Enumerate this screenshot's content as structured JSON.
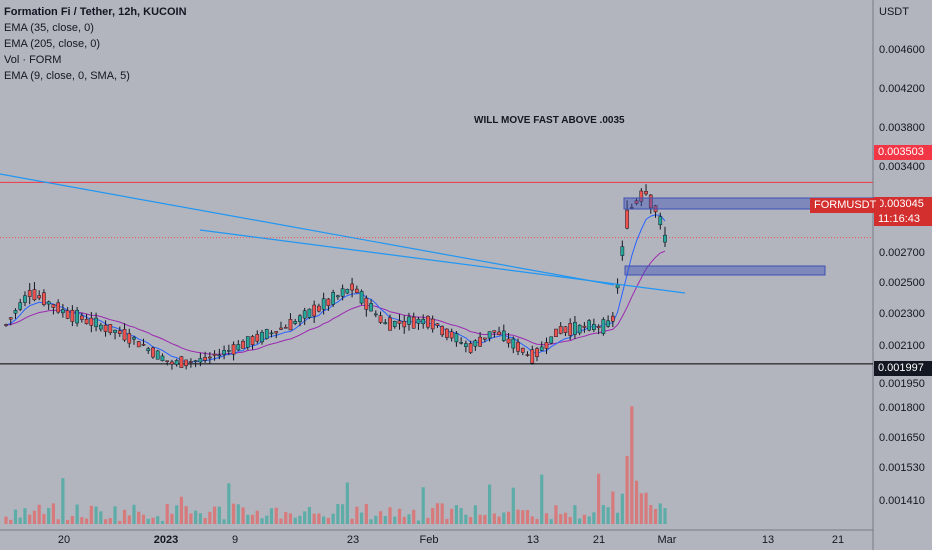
{
  "header": {
    "title": "Formation Fi / Tether, 12h, KUCOIN",
    "indicators": [
      "EMA (35, close, 0)",
      "EMA (205, close, 0)",
      "Vol · FORM",
      "EMA (9, close, 0, SMA, 5)"
    ]
  },
  "price_axis": {
    "unit": "USDT",
    "ticks": [
      "0.004600",
      "0.004200",
      "0.003800",
      "0.003400",
      "0.002700",
      "0.002500",
      "0.002300",
      "0.002100",
      "0.001950",
      "0.001800",
      "0.001650",
      "0.001530",
      "0.001410"
    ]
  },
  "time_axis": {
    "ticks": [
      "20",
      "2023",
      "9",
      "23",
      "Feb",
      "13",
      "21",
      "Mar",
      "13",
      "21"
    ]
  },
  "labels": {
    "resistance": "0.003503",
    "current": "0.003045",
    "symbol": "FORMUSDT",
    "countdown": "11:16:43",
    "support": "0.001997",
    "annotation": "WILL MOVE FAST ABOVE .0035"
  },
  "colors": {
    "background": "#b2b5be",
    "up": "#26a69a",
    "down": "#ef5350",
    "ema_fast": "#2962ff",
    "ema_slow": "#9c27b0",
    "resistance_line": "#f23645",
    "support_line": "#000000",
    "trendline": "#2196f3",
    "zone": "#3f51b5"
  },
  "chart_data": {
    "type": "candlestick",
    "ylim": [
      0.00193,
      0.0049
    ],
    "support": 0.001997,
    "resistance": 0.003503,
    "current_price": 0.003045,
    "segments": [
      {
        "date": "Dec 12",
        "close": 0.00232
      },
      {
        "date": "Dec 15",
        "close": 0.0026
      },
      {
        "date": "Dec 20",
        "close": 0.00243
      },
      {
        "date": "Dec 27",
        "close": 0.00222
      },
      {
        "date": "Jan 1",
        "close": 0.002
      },
      {
        "date": "Jan 5",
        "close": 0.00203
      },
      {
        "date": "Jan 9",
        "close": 0.00213
      },
      {
        "date": "Jan 15",
        "close": 0.00232
      },
      {
        "date": "Jan 23",
        "close": 0.00263
      },
      {
        "date": "Jan 27",
        "close": 0.00233
      },
      {
        "date": "Feb 1",
        "close": 0.00236
      },
      {
        "date": "Feb 7",
        "close": 0.00213
      },
      {
        "date": "Feb 11",
        "close": 0.00227
      },
      {
        "date": "Feb 14",
        "close": 0.00205
      },
      {
        "date": "Feb 17",
        "close": 0.00228
      },
      {
        "date": "Feb 21",
        "close": 0.00232
      },
      {
        "date": "Feb 23",
        "close": 0.00325
      },
      {
        "date": "Feb 24",
        "close": 0.00345
      },
      {
        "date": "Feb 26",
        "close": 0.0033
      },
      {
        "date": "Feb 28",
        "close": 0.003045
      }
    ],
    "volume_spike_index": 0.86
  }
}
